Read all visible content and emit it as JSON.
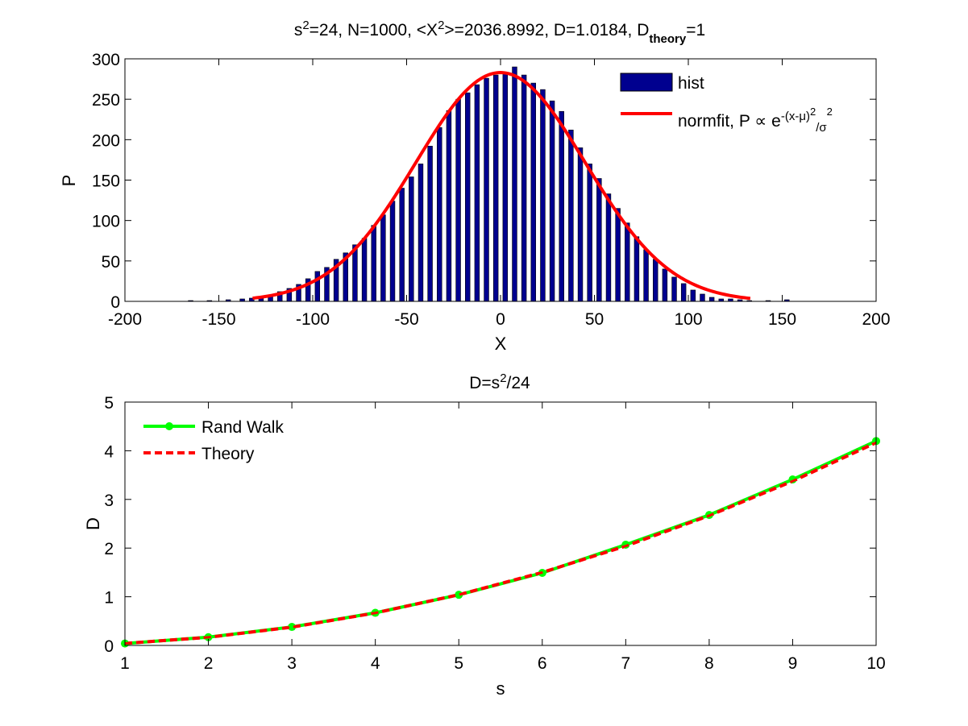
{
  "chart_data": [
    {
      "type": "bar",
      "title_parts": [
        "s",
        "2",
        "=24, N=1000, <X",
        "2",
        ">=2036.8992, D=1.0184, D",
        "theory",
        "=1"
      ],
      "xlabel": "X",
      "ylabel": "P",
      "xlim": [
        -200,
        200
      ],
      "ylim": [
        0,
        300
      ],
      "xticks": [
        "-200",
        "-150",
        "-100",
        "-50",
        "0",
        "50",
        "100",
        "150",
        "200"
      ],
      "yticks": [
        "0",
        "50",
        "100",
        "150",
        "200",
        "250",
        "300"
      ],
      "grid": false,
      "legend_position": "top-right",
      "series": [
        {
          "name": "hist",
          "kind": "bar",
          "color": "#00008f",
          "bin_width": 2.5,
          "x": [
            -165,
            -155,
            -145,
            -137.5,
            -132.5,
            -127.5,
            -122.5,
            -117.5,
            -112.5,
            -107.5,
            -102.5,
            -97.5,
            -92.5,
            -87.5,
            -82.5,
            -77.5,
            -72.5,
            -67.5,
            -62.5,
            -57.5,
            -52.5,
            -47.5,
            -42.5,
            -37.5,
            -32.5,
            -27.5,
            -22.5,
            -17.5,
            -12.5,
            -7.5,
            -2.5,
            2.5,
            7.5,
            12.5,
            17.5,
            22.5,
            27.5,
            32.5,
            37.5,
            42.5,
            47.5,
            52.5,
            57.5,
            62.5,
            67.5,
            72.5,
            77.5,
            82.5,
            87.5,
            92.5,
            97.5,
            102.5,
            107.5,
            112.5,
            117.5,
            122.5,
            127.5,
            132.5,
            142.5,
            152.5
          ],
          "values": [
            1,
            1,
            2,
            3,
            4,
            6,
            8,
            12,
            16,
            21,
            28,
            37,
            42,
            52,
            60,
            70,
            78,
            94,
            107,
            124,
            140,
            154,
            170,
            192,
            215,
            236,
            250,
            258,
            268,
            276,
            280,
            282,
            290,
            280,
            270,
            262,
            248,
            235,
            212,
            190,
            170,
            152,
            133,
            115,
            97,
            80,
            64,
            52,
            40,
            30,
            22,
            14,
            9,
            5,
            3,
            3,
            2,
            1,
            1,
            2
          ]
        },
        {
          "name_parts": [
            "normfit, P ∝ e",
            "-(x-μ)",
            "2",
            "/σ",
            "2"
          ],
          "kind": "line",
          "color": "#ff0000",
          "mu": 0,
          "sigma": 45.1,
          "peak": 283,
          "x_range": [
            -132,
            133
          ]
        }
      ]
    },
    {
      "type": "line",
      "title_parts": [
        "D=s",
        "2",
        "/24"
      ],
      "xlabel": "s",
      "ylabel": "D",
      "xlim": [
        1,
        10
      ],
      "ylim": [
        0,
        5
      ],
      "xticks": [
        "1",
        "2",
        "3",
        "4",
        "5",
        "6",
        "7",
        "8",
        "9",
        "10"
      ],
      "yticks": [
        "0",
        "1",
        "2",
        "3",
        "4",
        "5"
      ],
      "grid": false,
      "legend_position": "top-left",
      "x": [
        1,
        2,
        3,
        4,
        5,
        6,
        7,
        8,
        9,
        10
      ],
      "series": [
        {
          "name": "Rand Walk",
          "color": "#00ff00",
          "style": "solid",
          "marker": "circle",
          "values": [
            0.04,
            0.17,
            0.38,
            0.67,
            1.04,
            1.49,
            2.07,
            2.68,
            3.41,
            4.2
          ]
        },
        {
          "name": "Theory",
          "color": "#ff0000",
          "style": "dashed",
          "marker": "none",
          "values": [
            0.0417,
            0.1667,
            0.375,
            0.6667,
            1.0417,
            1.5,
            2.0417,
            2.6667,
            3.375,
            4.1667
          ]
        }
      ]
    }
  ]
}
